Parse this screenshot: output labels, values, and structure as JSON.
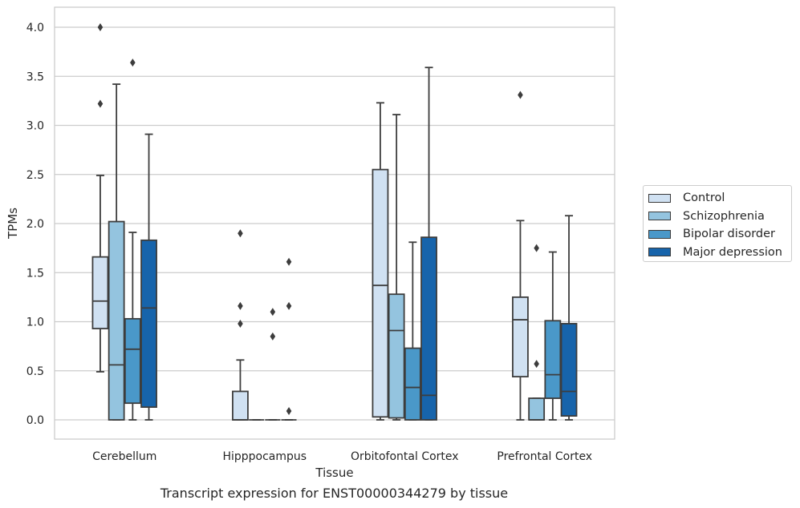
{
  "caption": "Transcript expression for ENST00000344279 by tissue",
  "chart_data": {
    "type": "boxplot",
    "xlabel": "Tissue",
    "ylabel": "TPMs",
    "ylim": [
      -0.19,
      4.2
    ],
    "yticks": [
      0.0,
      0.5,
      1.0,
      1.5,
      2.0,
      2.5,
      3.0,
      3.5,
      4.0
    ],
    "ytick_labels": [
      "0.0",
      "0.5",
      "1.0",
      "1.5",
      "2.0",
      "2.5",
      "3.0",
      "3.5",
      "4.0"
    ],
    "grid": true,
    "legend_position": "right, outside",
    "categories": [
      "Cerebellum",
      "Hipppocampus",
      "Orbitofontal Cortex",
      "Prefrontal Cortex"
    ],
    "series": [
      {
        "name": "Control",
        "color": "#d0e1f2",
        "boxes": [
          {
            "q1": 0.93,
            "median": 1.21,
            "q3": 1.66,
            "whisker_low": 0.49,
            "whisker_high": 2.49,
            "outliers": [
              3.22,
              4.0
            ]
          },
          {
            "q1": 0.0,
            "median": 0.0,
            "q3": 0.29,
            "whisker_low": 0.0,
            "whisker_high": 0.61,
            "outliers": [
              0.98,
              1.16,
              1.9
            ]
          },
          {
            "q1": 0.03,
            "median": 1.37,
            "q3": 2.55,
            "whisker_low": 0.0,
            "whisker_high": 3.23,
            "outliers": []
          },
          {
            "q1": 0.44,
            "median": 1.02,
            "q3": 1.25,
            "whisker_low": 0.0,
            "whisker_high": 2.03,
            "outliers": [
              3.31
            ]
          }
        ]
      },
      {
        "name": "Schizophrenia",
        "color": "#94c4df",
        "boxes": [
          {
            "q1": 0.0,
            "median": 0.56,
            "q3": 2.02,
            "whisker_low": 0.0,
            "whisker_high": 3.42,
            "outliers": []
          },
          {
            "q1": 0.0,
            "median": 0.0,
            "q3": 0.0,
            "whisker_low": 0.0,
            "whisker_high": 0.0,
            "outliers": []
          },
          {
            "q1": 0.02,
            "median": 0.91,
            "q3": 1.28,
            "whisker_low": 0.0,
            "whisker_high": 3.11,
            "outliers": []
          },
          {
            "q1": 0.0,
            "median": 0.0,
            "q3": 0.22,
            "whisker_low": 0.0,
            "whisker_high": 0.22,
            "outliers": [
              0.57,
              1.75
            ]
          }
        ]
      },
      {
        "name": "Bipolar disorder",
        "color": "#4a98c9",
        "boxes": [
          {
            "q1": 0.17,
            "median": 0.72,
            "q3": 1.03,
            "whisker_low": 0.0,
            "whisker_high": 1.91,
            "outliers": [
              3.64
            ]
          },
          {
            "q1": 0.0,
            "median": 0.0,
            "q3": 0.0,
            "whisker_low": 0.0,
            "whisker_high": 0.0,
            "outliers": [
              0.85,
              1.1
            ]
          },
          {
            "q1": 0.0,
            "median": 0.33,
            "q3": 0.73,
            "whisker_low": 0.0,
            "whisker_high": 1.81,
            "outliers": []
          },
          {
            "q1": 0.22,
            "median": 0.46,
            "q3": 1.01,
            "whisker_low": 0.0,
            "whisker_high": 1.71,
            "outliers": []
          }
        ]
      },
      {
        "name": "Major depression",
        "color": "#1764ab",
        "boxes": [
          {
            "q1": 0.13,
            "median": 1.14,
            "q3": 1.83,
            "whisker_low": 0.0,
            "whisker_high": 2.91,
            "outliers": []
          },
          {
            "q1": 0.0,
            "median": 0.0,
            "q3": 0.0,
            "whisker_low": 0.0,
            "whisker_high": 0.0,
            "outliers": [
              0.09,
              1.16,
              1.61
            ]
          },
          {
            "q1": 0.0,
            "median": 0.25,
            "q3": 1.86,
            "whisker_low": 0.0,
            "whisker_high": 3.59,
            "outliers": []
          },
          {
            "q1": 0.04,
            "median": 0.29,
            "q3": 0.98,
            "whisker_low": 0.0,
            "whisker_high": 2.08,
            "outliers": []
          }
        ]
      }
    ]
  }
}
